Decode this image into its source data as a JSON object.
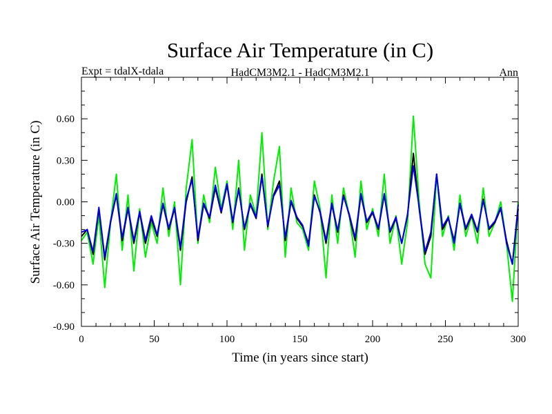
{
  "chart_data": {
    "type": "line",
    "title": "Surface Air Temperature (in C)",
    "subtitle_left": "Expt = tdalX-tdala",
    "subtitle_center": "HadCM3M2.1 - HadCM3M2.1",
    "subtitle_right": "Ann",
    "xlabel": "Time (in years since start)",
    "ylabel": "Surface Air Temperature (in C)",
    "xlim": [
      0,
      300
    ],
    "ylim": [
      -0.9,
      0.9
    ],
    "xticks": [
      0,
      50,
      100,
      150,
      200,
      250,
      300
    ],
    "xtick_labels": [
      "0",
      "50",
      "100",
      "150",
      "200",
      "250",
      "300"
    ],
    "yticks": [
      -0.9,
      -0.6,
      -0.3,
      0.0,
      0.3,
      0.6
    ],
    "ytick_labels": [
      "-0.90",
      "-0.60",
      "-0.30",
      "0.00",
      "0.30",
      "0.60"
    ],
    "colors": {
      "green": "#00ee00",
      "black": "#000000",
      "blue": "#0000ee"
    },
    "x": [
      0,
      4,
      8,
      12,
      16,
      20,
      24,
      28,
      32,
      36,
      40,
      44,
      48,
      52,
      56,
      60,
      64,
      68,
      72,
      76,
      80,
      84,
      88,
      92,
      96,
      100,
      104,
      108,
      112,
      116,
      120,
      124,
      128,
      132,
      136,
      140,
      144,
      148,
      152,
      156,
      160,
      164,
      168,
      172,
      176,
      180,
      184,
      188,
      192,
      196,
      200,
      204,
      208,
      212,
      216,
      220,
      224,
      228,
      232,
      236,
      240,
      244,
      248,
      252,
      256,
      260,
      264,
      268,
      272,
      276,
      280,
      284,
      288,
      292,
      296,
      300
    ],
    "series": [
      {
        "name": "green",
        "color": "#00ee00",
        "values": [
          -0.28,
          -0.22,
          -0.45,
          -0.1,
          -0.62,
          -0.15,
          0.2,
          -0.35,
          0.05,
          -0.5,
          -0.05,
          -0.4,
          -0.15,
          -0.3,
          0.1,
          -0.25,
          0.0,
          -0.6,
          0.1,
          0.45,
          -0.3,
          0.05,
          -0.15,
          0.25,
          -0.05,
          0.15,
          -0.2,
          0.3,
          -0.35,
          0.05,
          -0.1,
          0.5,
          -0.2,
          0.15,
          0.4,
          -0.4,
          0.1,
          -0.15,
          -0.2,
          -0.35,
          0.15,
          -0.05,
          -0.55,
          0.05,
          -0.3,
          0.1,
          -0.1,
          -0.4,
          0.15,
          -0.2,
          -0.05,
          -0.25,
          0.2,
          -0.3,
          -0.1,
          -0.45,
          -0.15,
          0.62,
          0.0,
          -0.45,
          -0.55,
          0.2,
          -0.25,
          -0.1,
          -0.35,
          0.05,
          -0.25,
          -0.1,
          -0.3,
          0.1,
          -0.25,
          -0.15,
          0.0,
          -0.3,
          -0.72,
          0.0
        ]
      },
      {
        "name": "black",
        "color": "#000000",
        "values": [
          -0.25,
          -0.2,
          -0.38,
          -0.05,
          -0.42,
          -0.15,
          0.05,
          -0.28,
          -0.05,
          -0.3,
          -0.08,
          -0.3,
          -0.12,
          -0.25,
          -0.02,
          -0.2,
          -0.05,
          -0.35,
          0.0,
          0.18,
          -0.28,
          -0.02,
          -0.12,
          0.1,
          -0.08,
          0.12,
          -0.15,
          0.1,
          -0.2,
          -0.02,
          -0.12,
          0.2,
          -0.18,
          0.05,
          0.15,
          -0.28,
          0.0,
          -0.12,
          -0.18,
          -0.3,
          0.05,
          -0.08,
          -0.3,
          -0.02,
          -0.22,
          0.05,
          -0.1,
          -0.28,
          0.05,
          -0.15,
          -0.08,
          -0.2,
          0.05,
          -0.22,
          -0.12,
          -0.3,
          -0.1,
          0.35,
          -0.05,
          -0.38,
          -0.25,
          0.2,
          -0.2,
          -0.12,
          -0.28,
          -0.02,
          -0.2,
          -0.1,
          -0.22,
          0.02,
          -0.2,
          -0.15,
          -0.05,
          -0.28,
          -0.45,
          -0.05
        ]
      },
      {
        "name": "blue",
        "color": "#0000ee",
        "values": [
          -0.22,
          -0.2,
          -0.36,
          -0.04,
          -0.4,
          -0.14,
          0.06,
          -0.26,
          -0.04,
          -0.28,
          -0.07,
          -0.28,
          -0.1,
          -0.24,
          -0.01,
          -0.19,
          -0.04,
          -0.33,
          0.02,
          0.16,
          -0.26,
          -0.01,
          -0.11,
          0.12,
          -0.07,
          0.13,
          -0.14,
          0.09,
          -0.19,
          -0.01,
          -0.11,
          0.18,
          -0.17,
          0.04,
          0.12,
          -0.26,
          0.01,
          -0.11,
          -0.17,
          -0.32,
          0.04,
          -0.07,
          -0.28,
          -0.01,
          -0.21,
          0.04,
          -0.09,
          -0.26,
          0.06,
          -0.14,
          -0.07,
          -0.19,
          0.06,
          -0.21,
          -0.11,
          -0.3,
          -0.09,
          0.26,
          -0.04,
          -0.36,
          -0.22,
          0.2,
          -0.18,
          -0.11,
          -0.3,
          -0.01,
          -0.19,
          -0.09,
          -0.21,
          0.01,
          -0.19,
          -0.14,
          -0.04,
          -0.3,
          -0.45,
          -0.02
        ]
      }
    ]
  }
}
